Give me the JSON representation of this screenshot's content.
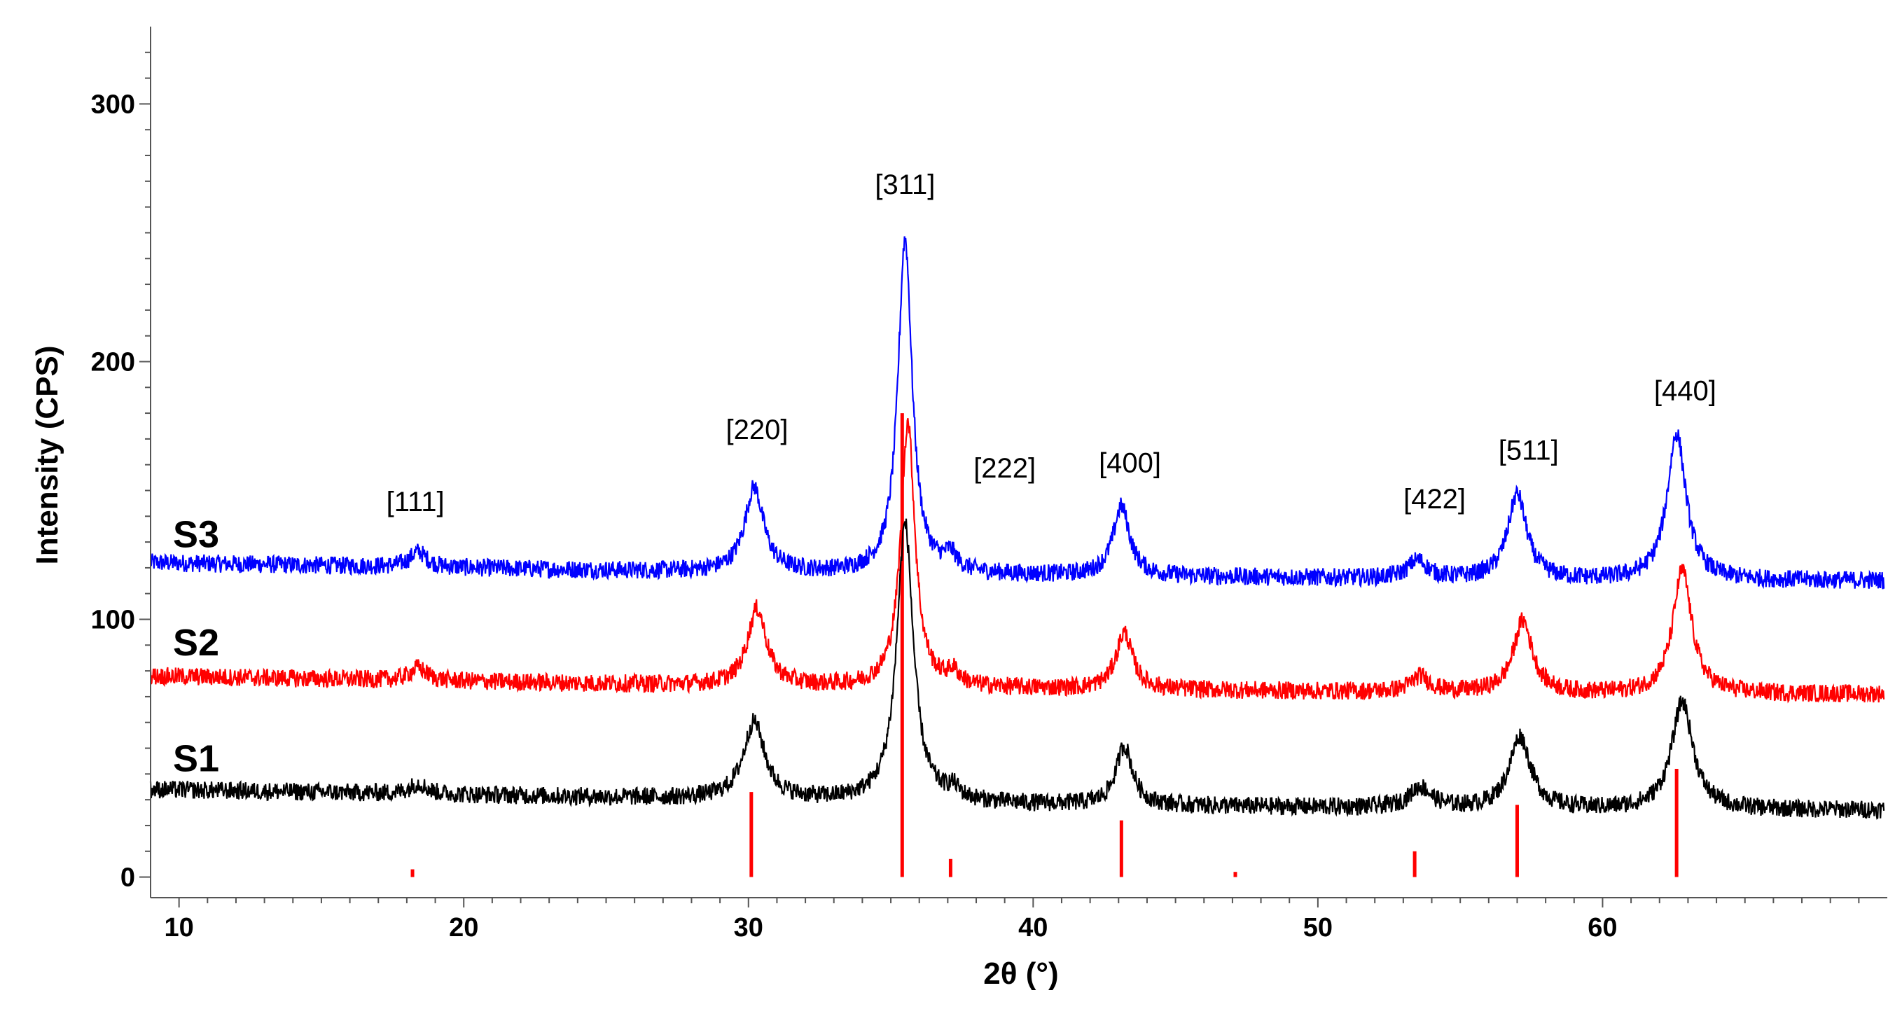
{
  "chart_data": {
    "type": "line",
    "title": "",
    "xlabel": "2θ (°)",
    "ylabel": "Intensity (CPS)",
    "xlim": [
      9,
      70
    ],
    "ylim": [
      -8,
      330
    ],
    "x_ticks": [
      10,
      20,
      30,
      40,
      50,
      60
    ],
    "y_ticks": [
      0,
      100,
      200,
      300
    ],
    "grid": false,
    "legend": "none",
    "series": [
      {
        "name": "S3",
        "color": "#0000ff",
        "baseline": [
          [
            9,
            122
          ],
          [
            30,
            118
          ],
          [
            40,
            117
          ],
          [
            50,
            116
          ],
          [
            60,
            115
          ],
          [
            70,
            115
          ]
        ],
        "peaks": [
          [
            18.4,
            6,
            0.35
          ],
          [
            30.2,
            33,
            0.4
          ],
          [
            35.5,
            130,
            0.3
          ],
          [
            37.1,
            6,
            0.25
          ],
          [
            43.1,
            27,
            0.35
          ],
          [
            53.5,
            7,
            0.4
          ],
          [
            57.0,
            33,
            0.4
          ],
          [
            62.6,
            57,
            0.4
          ]
        ]
      },
      {
        "name": "S2",
        "color": "#ff0000",
        "baseline": [
          [
            9,
            78
          ],
          [
            30,
            74
          ],
          [
            40,
            73
          ],
          [
            50,
            72
          ],
          [
            60,
            71
          ],
          [
            70,
            71
          ]
        ],
        "peaks": [
          [
            18.4,
            5,
            0.35
          ],
          [
            30.3,
            30,
            0.4
          ],
          [
            35.6,
            103,
            0.3
          ],
          [
            37.2,
            5,
            0.25
          ],
          [
            43.2,
            22,
            0.35
          ],
          [
            53.6,
            6,
            0.4
          ],
          [
            57.2,
            28,
            0.4
          ],
          [
            62.8,
            48,
            0.4
          ]
        ]
      },
      {
        "name": "S1",
        "color": "#000000",
        "baseline": [
          [
            9,
            34
          ],
          [
            30,
            30
          ],
          [
            40,
            28
          ],
          [
            50,
            27
          ],
          [
            60,
            26
          ],
          [
            70,
            26
          ]
        ],
        "peaks": [
          [
            18.4,
            4,
            0.35
          ],
          [
            30.2,
            30,
            0.45
          ],
          [
            35.5,
            108,
            0.35
          ],
          [
            37.2,
            4,
            0.25
          ],
          [
            43.2,
            23,
            0.35
          ],
          [
            53.6,
            8,
            0.45
          ],
          [
            57.1,
            28,
            0.45
          ],
          [
            62.8,
            42,
            0.45
          ]
        ]
      }
    ],
    "reference_lines": [
      {
        "x": 18.2,
        "height": 3
      },
      {
        "x": 30.1,
        "height": 33
      },
      {
        "x": 35.4,
        "height": 180
      },
      {
        "x": 37.1,
        "height": 7
      },
      {
        "x": 43.1,
        "height": 22
      },
      {
        "x": 47.1,
        "height": 2
      },
      {
        "x": 53.4,
        "height": 10
      },
      {
        "x": 57.0,
        "height": 28
      },
      {
        "x": 62.6,
        "height": 42
      }
    ],
    "reference_color": "#ff0000",
    "annotations": [
      {
        "text": "[111]",
        "x": 18.3,
        "y": 142
      },
      {
        "text": "[220]",
        "x": 30.3,
        "y": 170
      },
      {
        "text": "[311]",
        "x": 35.5,
        "y": 265
      },
      {
        "text": "[222]",
        "x": 39.0,
        "y": 155
      },
      {
        "text": "[400]",
        "x": 43.4,
        "y": 157
      },
      {
        "text": "[422]",
        "x": 54.1,
        "y": 143
      },
      {
        "text": "[511]",
        "x": 57.4,
        "y": 162
      },
      {
        "text": "[440]",
        "x": 62.9,
        "y": 185
      }
    ],
    "series_labels": [
      {
        "text": "S3",
        "x": 10.6,
        "y": 128
      },
      {
        "text": "S2",
        "x": 10.6,
        "y": 86
      },
      {
        "text": "S1",
        "x": 10.6,
        "y": 41
      }
    ]
  }
}
